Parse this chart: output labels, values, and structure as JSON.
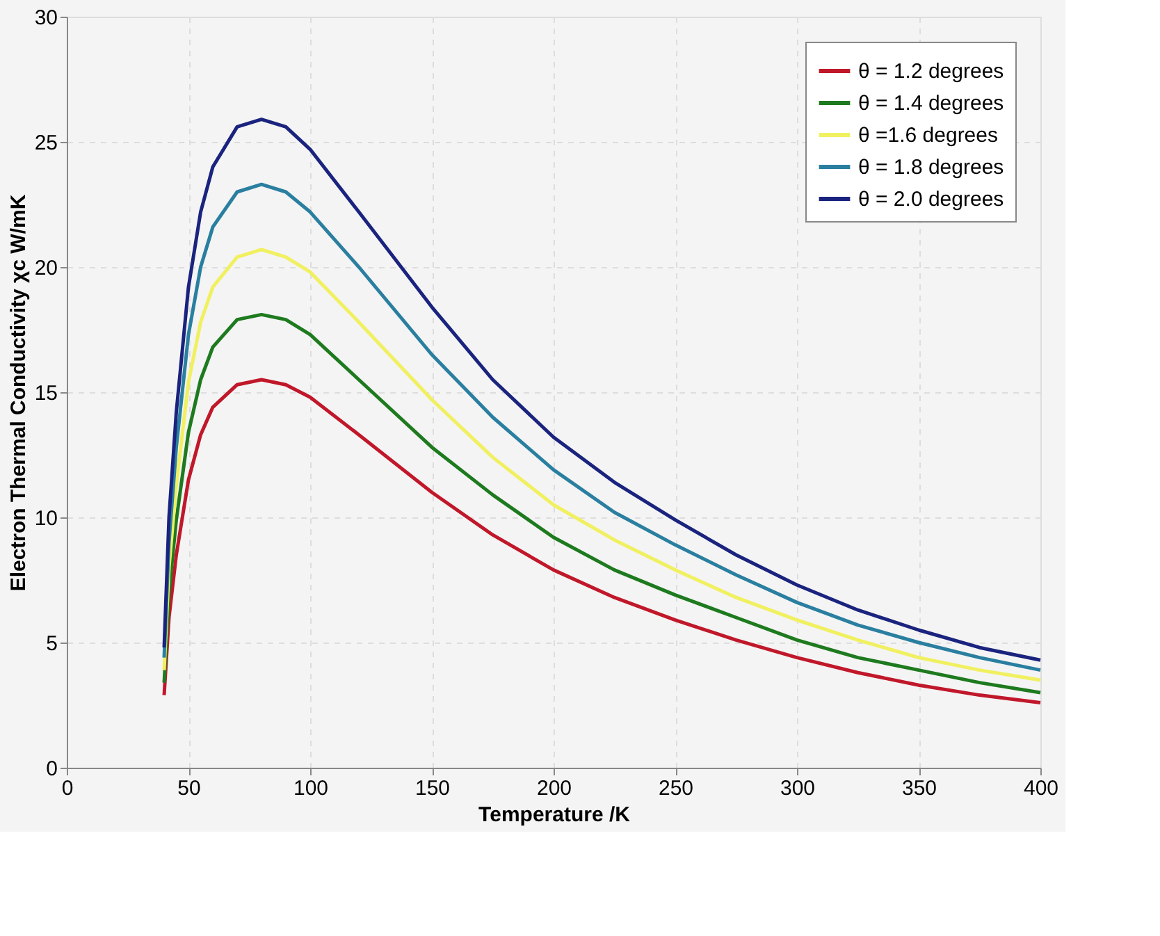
{
  "chart_data": {
    "type": "line",
    "xlabel": "Temperature /K",
    "ylabel": "Electron Thermal Conductivity χc  W/mK",
    "x": [
      40,
      42,
      45,
      50,
      55,
      60,
      70,
      80,
      90,
      100,
      120,
      150,
      175,
      200,
      225,
      250,
      275,
      300,
      325,
      350,
      375,
      400
    ],
    "series": [
      {
        "name": "θ = 1.2 degrees",
        "color": "#c0182a",
        "values": [
          2.9,
          6.0,
          8.5,
          11.5,
          13.3,
          14.4,
          15.3,
          15.5,
          15.3,
          14.8,
          13.3,
          11.0,
          9.3,
          7.9,
          6.8,
          5.9,
          5.1,
          4.4,
          3.8,
          3.3,
          2.9,
          2.6
        ]
      },
      {
        "name": "θ = 1.4 degrees",
        "color": "#1e7a1e",
        "values": [
          3.4,
          7.0,
          9.9,
          13.4,
          15.5,
          16.8,
          17.9,
          18.1,
          17.9,
          17.3,
          15.5,
          12.8,
          10.9,
          9.2,
          7.9,
          6.9,
          6.0,
          5.1,
          4.4,
          3.9,
          3.4,
          3.0
        ]
      },
      {
        "name": "θ =1.6 degrees",
        "color": "#f0f060",
        "values": [
          3.9,
          8.0,
          11.3,
          15.4,
          17.8,
          19.2,
          20.4,
          20.7,
          20.4,
          19.8,
          17.8,
          14.7,
          12.4,
          10.5,
          9.1,
          7.9,
          6.8,
          5.9,
          5.1,
          4.4,
          3.9,
          3.5
        ]
      },
      {
        "name": "θ = 1.8 degrees",
        "color": "#2a7fa0",
        "values": [
          4.4,
          9.0,
          12.8,
          17.3,
          20.0,
          21.6,
          23.0,
          23.3,
          23.0,
          22.2,
          20.0,
          16.5,
          14.0,
          11.9,
          10.2,
          8.9,
          7.7,
          6.6,
          5.7,
          5.0,
          4.4,
          3.9
        ]
      },
      {
        "name": "θ = 2.0 degrees",
        "color": "#1a237e",
        "values": [
          4.8,
          10.0,
          14.2,
          19.2,
          22.2,
          24.0,
          25.6,
          25.9,
          25.6,
          24.7,
          22.2,
          18.4,
          15.5,
          13.2,
          11.4,
          9.9,
          8.5,
          7.3,
          6.3,
          5.5,
          4.8,
          4.3
        ]
      }
    ],
    "xlim": [
      0,
      400
    ],
    "xticks": [
      0,
      50,
      100,
      150,
      200,
      250,
      300,
      350,
      400
    ],
    "ylim": [
      0,
      30
    ],
    "yticks": [
      0,
      5,
      10,
      15,
      20,
      25,
      30
    ],
    "grid": true,
    "legend": "top right",
    "line_style": "solid",
    "marker": "none"
  }
}
